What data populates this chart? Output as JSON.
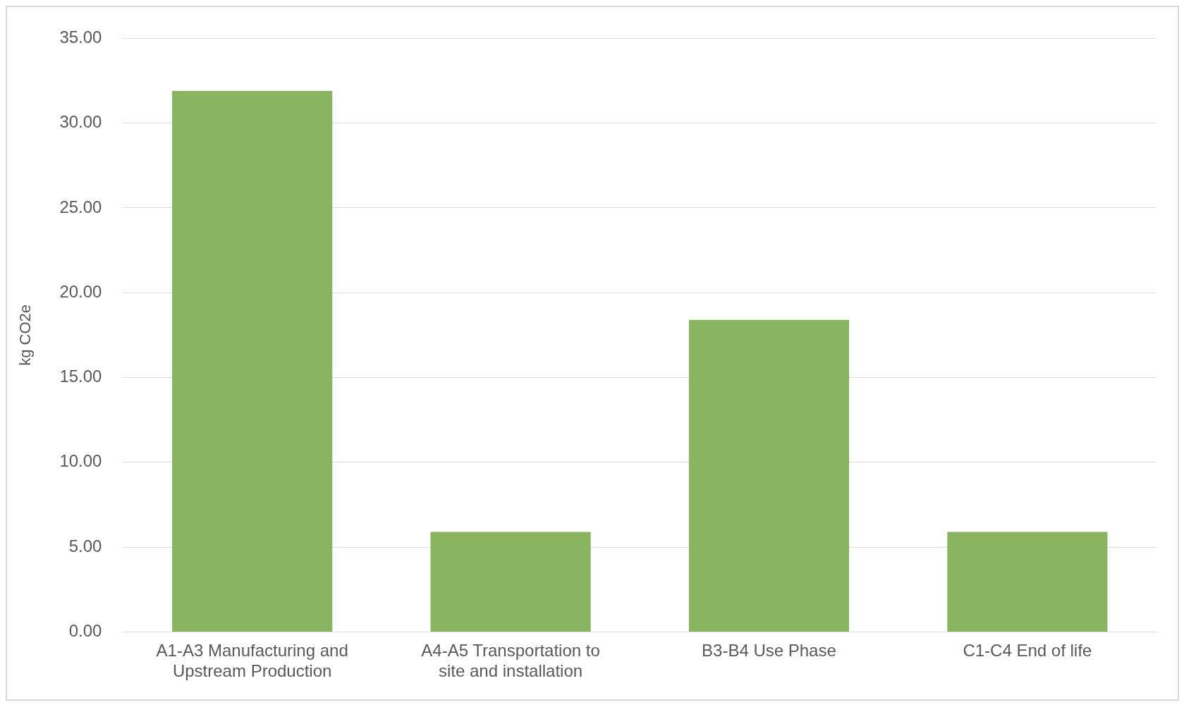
{
  "chart_data": {
    "type": "bar",
    "ylabel": "kg CO2e",
    "categories": [
      "A1-A3 Manufacturing and Upstream Production",
      "A4-A5 Transportation to site and installation",
      "B3-B4 Use Phase",
      "C1-C4 End of life"
    ],
    "values": [
      31.9,
      5.9,
      18.4,
      5.9
    ],
    "color": "#8ab560",
    "ylim": [
      0,
      35
    ],
    "yticks": [
      {
        "value": 0,
        "label": "0.00"
      },
      {
        "value": 5,
        "label": "5.00"
      },
      {
        "value": 10,
        "label": "10.00"
      },
      {
        "value": 15,
        "label": "15.00"
      },
      {
        "value": 20,
        "label": "20.00"
      },
      {
        "value": 25,
        "label": "25.00"
      },
      {
        "value": 30,
        "label": "30.00"
      },
      {
        "value": 35,
        "label": "35.00"
      }
    ],
    "grid": "y",
    "legend": false
  }
}
